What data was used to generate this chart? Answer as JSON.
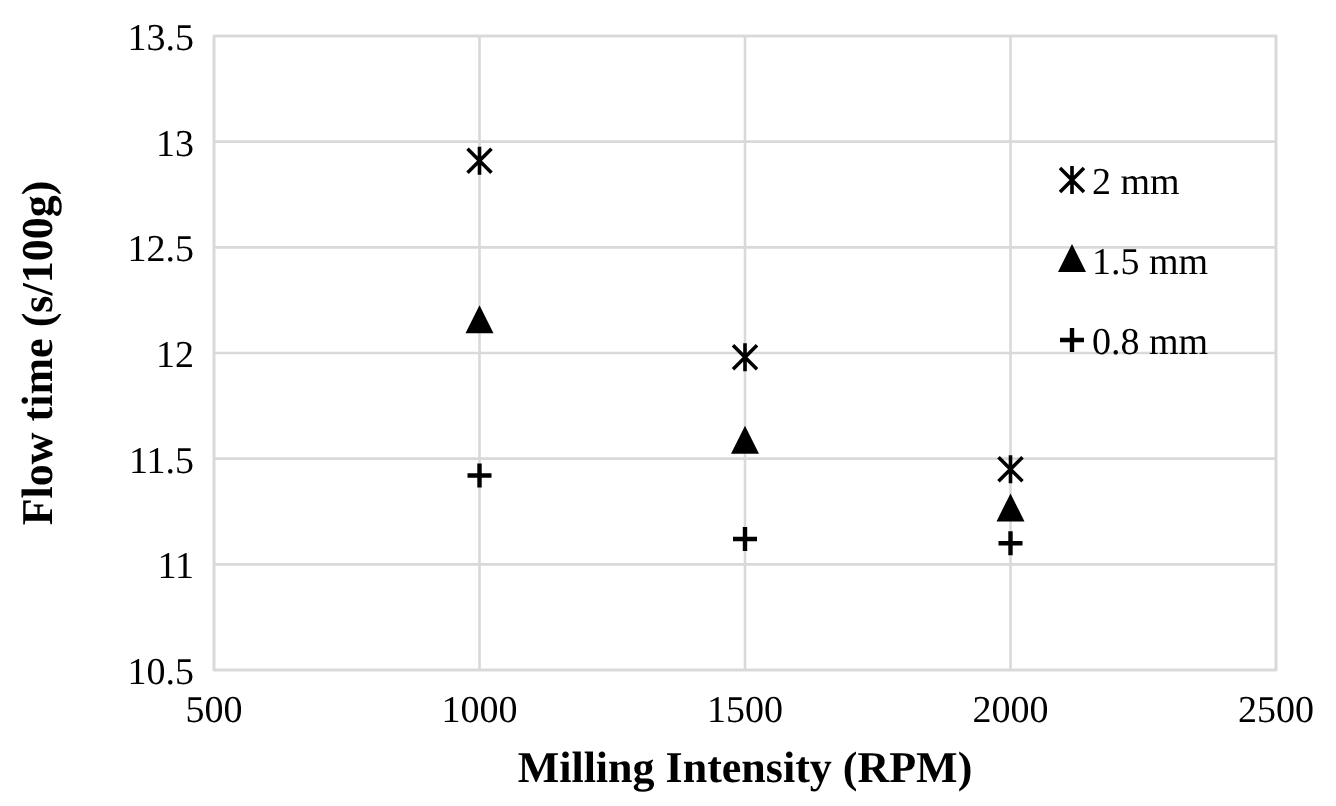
{
  "chart_data": {
    "type": "scatter",
    "xlabel": "Milling Intensity (RPM)",
    "ylabel": "Flow time (s/100g)",
    "x": [
      1000,
      1500,
      2000
    ],
    "series": [
      {
        "name": "2 mm",
        "color": "#000000",
        "marker": "cross",
        "values": [
          12.91,
          11.98,
          11.45
        ]
      },
      {
        "name": "1.5 mm",
        "color": "#000000",
        "marker": "triangle",
        "values": [
          12.15,
          11.58,
          11.26
        ]
      },
      {
        "name": "0.8 mm",
        "color": "#000000",
        "marker": "cross",
        "values": [
          11.42,
          11.12,
          11.1
        ]
      }
    ],
    "xlim": [
      500,
      2500
    ],
    "xticks": [
      500,
      1000,
      1500,
      2000,
      2500
    ],
    "ylim": [
      10.5,
      13.5
    ],
    "yticks": [
      10.5,
      11,
      11.5,
      12,
      12.5,
      13,
      13.5
    ],
    "grid": true,
    "legend": "top right"
  }
}
